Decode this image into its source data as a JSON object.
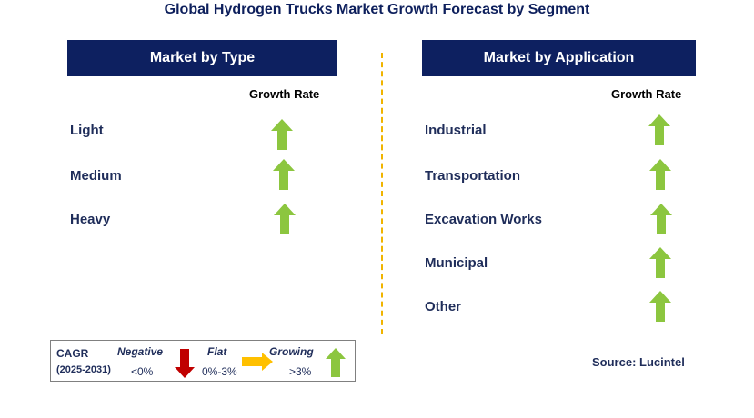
{
  "title": "Global Hydrogen Trucks Market Growth Forecast by Segment",
  "left_panel": {
    "header": "Market by Type",
    "growth_label": "Growth Rate",
    "rows": [
      "Light",
      "Medium",
      "Heavy"
    ]
  },
  "right_panel": {
    "header": "Market by Application",
    "growth_label": "Growth Rate",
    "rows": [
      "Industrial",
      "Transportation",
      "Excavation Works",
      "Municipal",
      "Other"
    ]
  },
  "legend": {
    "cagr_label": "CAGR",
    "period": "(2025-2031)",
    "negative_label": "Negative",
    "negative_range": "<0%",
    "flat_label": "Flat",
    "flat_range": "0%-3%",
    "growing_label": "Growing",
    "growing_range": ">3%"
  },
  "source": "Source: Lucintel",
  "colors": {
    "header_bg": "#0d2060",
    "growing": "#8cc63f",
    "negative": "#c00000",
    "flat": "#ffc000",
    "divider": "#f0b400"
  }
}
